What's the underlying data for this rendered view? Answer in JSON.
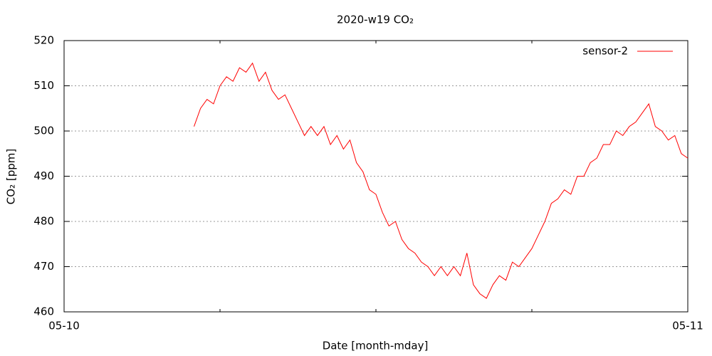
{
  "chart_data": {
    "type": "line",
    "title": "2020-w19 CO₂",
    "x_label": "Date [month-mday]",
    "y_label": "CO₂ [ppm]",
    "x": [
      5,
      5.25,
      5.5,
      5.75,
      6,
      6.25,
      6.5,
      6.75,
      7,
      7.25,
      7.5,
      7.75,
      8,
      8.25,
      8.5,
      8.75,
      9,
      9.25,
      9.5,
      9.75,
      10,
      10.25,
      10.5,
      10.75,
      11,
      11.25,
      11.5,
      11.75,
      12,
      12.25,
      12.5,
      12.75,
      13,
      13.25,
      13.5,
      13.75,
      14,
      14.25,
      14.5,
      14.75,
      15,
      15.25,
      15.5,
      15.75,
      16,
      16.25,
      16.5,
      16.75,
      17,
      17.25,
      17.5,
      17.75,
      18,
      18.25,
      18.5,
      18.75,
      19,
      19.25,
      19.5,
      19.75,
      20,
      20.25,
      20.5,
      20.75,
      21,
      21.25,
      21.5,
      21.75,
      22,
      22.25,
      22.5,
      22.75,
      23,
      23.25,
      23.5,
      23.75,
      24
    ],
    "series": [
      {
        "name": "sensor-2",
        "color": "#ff0000",
        "values": [
          501,
          505,
          507,
          506,
          510,
          512,
          511,
          514,
          513,
          515,
          511,
          513,
          509,
          507,
          508,
          505,
          502,
          499,
          501,
          499,
          501,
          497,
          499,
          496,
          498,
          493,
          491,
          487,
          486,
          482,
          479,
          480,
          476,
          474,
          473,
          471,
          470,
          468,
          470,
          468,
          470,
          468,
          473,
          466,
          464,
          463,
          466,
          468,
          467,
          471,
          470,
          472,
          474,
          477,
          480,
          484,
          485,
          487,
          486,
          490,
          490,
          493,
          494,
          497,
          497,
          500,
          499,
          501,
          502,
          504,
          506,
          501,
          500,
          498,
          499,
          495,
          494
        ]
      }
    ],
    "xlim": [
      0,
      24
    ],
    "xticks": [
      {
        "value": 0,
        "label": "05-10"
      },
      {
        "value": 24,
        "label": "05-11"
      }
    ],
    "xminorticks": [
      6,
      12,
      18
    ],
    "ylim": [
      460,
      520
    ],
    "yticks": [
      460,
      470,
      480,
      490,
      500,
      510,
      520
    ],
    "grid": true,
    "legend": "top-right"
  }
}
